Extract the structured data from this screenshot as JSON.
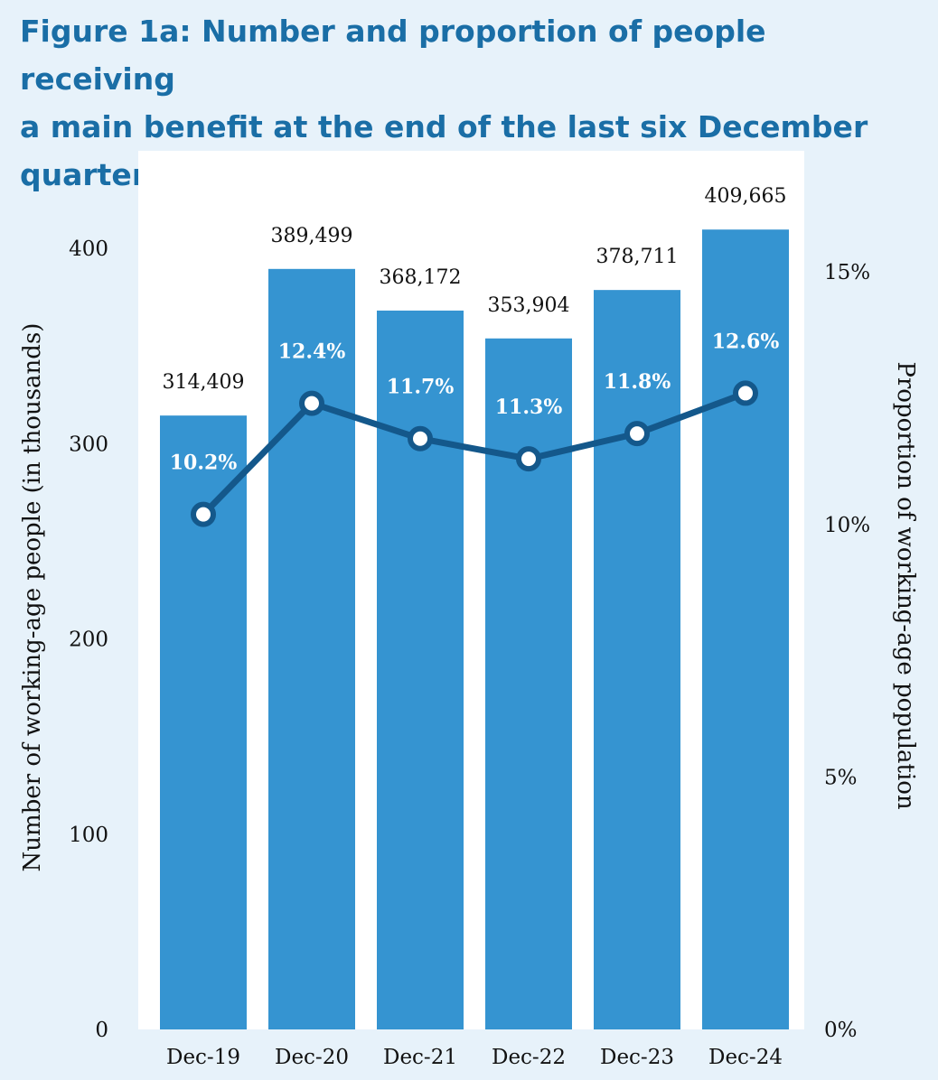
{
  "title": {
    "line1": "Figure 1a: Number and proportion of people receiving",
    "line2": "a main benefit at the end of the last six December quarters."
  },
  "colors": {
    "background": "#e7f2fa",
    "plot_area": "#ffffff",
    "bar": "#3594d1",
    "line": "#14588b",
    "title": "#1a6ea6"
  },
  "chart_data": {
    "type": "bar",
    "categories": [
      "Dec-19",
      "Dec-20",
      "Dec-21",
      "Dec-22",
      "Dec-23",
      "Dec-24"
    ],
    "series": [
      {
        "type": "bar",
        "axis": "left",
        "values": [
          314409,
          389499,
          368172,
          353904,
          378711,
          409665
        ],
        "labels": [
          "314,409",
          "389,499",
          "368,172",
          "353,904",
          "378,711",
          "409,665"
        ]
      },
      {
        "type": "line",
        "axis": "right",
        "values": [
          10.2,
          12.4,
          11.7,
          11.3,
          11.8,
          12.6
        ],
        "labels": [
          "10.2%",
          "12.4%",
          "11.7%",
          "11.3%",
          "11.8%",
          "12.6%"
        ]
      }
    ],
    "ylabel": "Number of working-age people (in thousands)",
    "y2label": "Proportion of working-age population",
    "ylim": [
      0,
      450
    ],
    "y2lim": [
      0,
      17.4
    ],
    "yticks": [
      "0",
      "100",
      "200",
      "300",
      "400"
    ],
    "y2ticks": [
      "0%",
      "5%",
      "10%",
      "15%"
    ],
    "grid": false,
    "legend": "none"
  }
}
